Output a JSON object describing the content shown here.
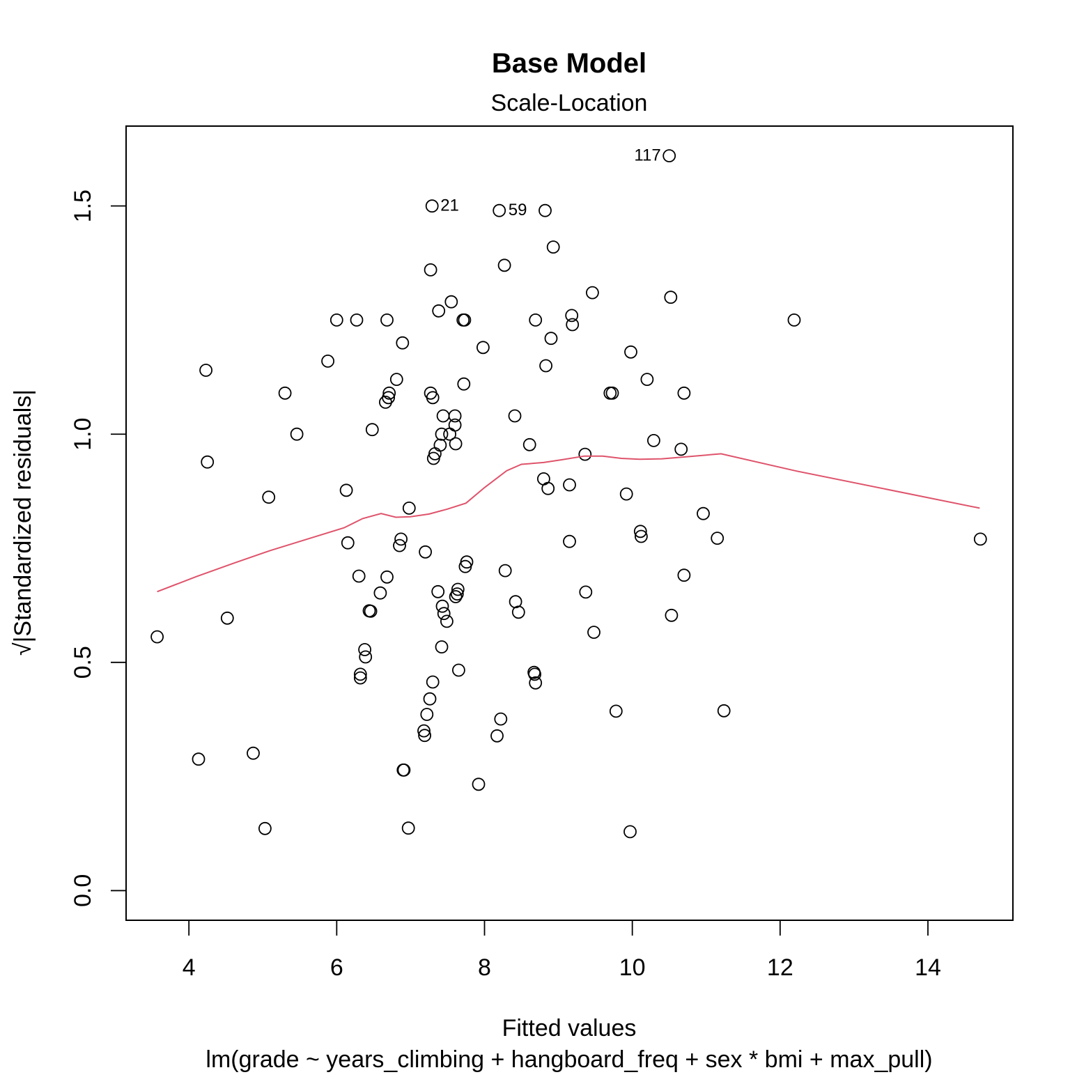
{
  "chart_data": {
    "type": "scatter",
    "title": "Base Model",
    "subtitle": "Scale-Location",
    "xlabel": "Fitted values",
    "xlabel_sub": "lm(grade ~ years_climbing + hangboard_freq + sex * bmi + max_pull)",
    "ylabel": "√|Standardized residuals|",
    "xlim": [
      3.15,
      15.15
    ],
    "ylim": [
      -0.065,
      1.675
    ],
    "x_ticks": [
      4,
      6,
      8,
      10,
      12,
      14
    ],
    "x_tick_labels": [
      "4",
      "6",
      "8",
      "10",
      "12",
      "14"
    ],
    "y_ticks": [
      0.0,
      0.5,
      1.0,
      1.5
    ],
    "y_tick_labels": [
      "0.0",
      "0.5",
      "1.0",
      "1.5"
    ],
    "grid": false,
    "legend": "none",
    "point_color": "#000000",
    "smooth_color": "#df536b",
    "annotations": [
      {
        "text": "117",
        "x": 10.5,
        "y": 1.61,
        "side": "left"
      },
      {
        "text": "21",
        "x": 7.29,
        "y": 1.5,
        "side": "right"
      },
      {
        "text": "59",
        "x": 8.21,
        "y": 1.49,
        "side": "right"
      }
    ],
    "points": [
      [
        3.57,
        0.556
      ],
      [
        4.13,
        0.288
      ],
      [
        4.23,
        1.14
      ],
      [
        4.25,
        0.939
      ],
      [
        4.52,
        0.597
      ],
      [
        4.87,
        0.301
      ],
      [
        5.03,
        0.136
      ],
      [
        5.08,
        0.862
      ],
      [
        5.3,
        1.09
      ],
      [
        5.46,
        1.0
      ],
      [
        5.88,
        1.16
      ],
      [
        6.0,
        1.25
      ],
      [
        6.13,
        0.877
      ],
      [
        6.15,
        0.762
      ],
      [
        6.27,
        1.25
      ],
      [
        6.3,
        0.689
      ],
      [
        6.32,
        0.474
      ],
      [
        6.32,
        0.466
      ],
      [
        6.38,
        0.528
      ],
      [
        6.39,
        0.512
      ],
      [
        6.44,
        0.613
      ],
      [
        6.46,
        0.612
      ],
      [
        6.48,
        1.01
      ],
      [
        6.59,
        0.652
      ],
      [
        6.66,
        1.07
      ],
      [
        6.68,
        0.687
      ],
      [
        6.68,
        1.25
      ],
      [
        6.7,
        1.08
      ],
      [
        6.71,
        1.09
      ],
      [
        6.81,
        1.12
      ],
      [
        6.85,
        0.756
      ],
      [
        6.87,
        0.77
      ],
      [
        6.89,
        1.2
      ],
      [
        6.9,
        0.264
      ],
      [
        6.91,
        0.264
      ],
      [
        6.97,
        0.137
      ],
      [
        6.98,
        0.838
      ],
      [
        7.18,
        0.35
      ],
      [
        7.19,
        0.34
      ],
      [
        7.2,
        0.742
      ],
      [
        7.22,
        0.386
      ],
      [
        7.26,
        0.42
      ],
      [
        7.27,
        1.09
      ],
      [
        7.27,
        1.36
      ],
      [
        7.29,
        1.5
      ],
      [
        7.3,
        1.08
      ],
      [
        7.3,
        0.457
      ],
      [
        7.31,
        0.947
      ],
      [
        7.33,
        0.957
      ],
      [
        7.37,
        0.655
      ],
      [
        7.38,
        1.27
      ],
      [
        7.4,
        0.976
      ],
      [
        7.42,
        1.0
      ],
      [
        7.42,
        0.534
      ],
      [
        7.43,
        0.623
      ],
      [
        7.44,
        1.04
      ],
      [
        7.45,
        0.607
      ],
      [
        7.49,
        0.59
      ],
      [
        7.53,
        1.0
      ],
      [
        7.55,
        1.29
      ],
      [
        7.6,
        1.04
      ],
      [
        7.6,
        1.02
      ],
      [
        7.61,
        0.979
      ],
      [
        7.61,
        0.644
      ],
      [
        7.63,
        0.65
      ],
      [
        7.64,
        0.66
      ],
      [
        7.65,
        0.483
      ],
      [
        7.71,
        1.25
      ],
      [
        7.72,
        1.11
      ],
      [
        7.73,
        1.25
      ],
      [
        7.74,
        0.71
      ],
      [
        7.76,
        0.72
      ],
      [
        7.92,
        0.233
      ],
      [
        7.98,
        1.19
      ],
      [
        8.17,
        0.339
      ],
      [
        8.2,
        1.49
      ],
      [
        8.22,
        0.376
      ],
      [
        8.27,
        1.37
      ],
      [
        8.28,
        0.701
      ],
      [
        8.41,
        1.04
      ],
      [
        8.42,
        0.633
      ],
      [
        8.46,
        0.61
      ],
      [
        8.61,
        0.977
      ],
      [
        8.67,
        0.478
      ],
      [
        8.68,
        0.474
      ],
      [
        8.69,
        0.455
      ],
      [
        8.69,
        1.25
      ],
      [
        8.8,
        0.902
      ],
      [
        8.82,
        1.49
      ],
      [
        8.83,
        1.15
      ],
      [
        8.86,
        0.881
      ],
      [
        8.9,
        1.21
      ],
      [
        8.93,
        1.41
      ],
      [
        9.15,
        0.889
      ],
      [
        9.15,
        0.765
      ],
      [
        9.18,
        1.26
      ],
      [
        9.19,
        1.24
      ],
      [
        9.36,
        0.956
      ],
      [
        9.37,
        0.654
      ],
      [
        9.46,
        1.31
      ],
      [
        9.48,
        0.566
      ],
      [
        9.7,
        1.09
      ],
      [
        9.73,
        1.09
      ],
      [
        9.78,
        0.393
      ],
      [
        9.92,
        0.869
      ],
      [
        9.97,
        0.129
      ],
      [
        9.98,
        1.18
      ],
      [
        10.11,
        0.787
      ],
      [
        10.12,
        0.776
      ],
      [
        10.2,
        1.12
      ],
      [
        10.29,
        0.986
      ],
      [
        10.5,
        1.61
      ],
      [
        10.52,
        1.3
      ],
      [
        10.53,
        0.603
      ],
      [
        10.66,
        0.967
      ],
      [
        10.7,
        0.691
      ],
      [
        10.7,
        1.09
      ],
      [
        10.96,
        0.826
      ],
      [
        11.15,
        0.772
      ],
      [
        11.24,
        0.394
      ],
      [
        12.19,
        1.25
      ],
      [
        14.71,
        0.77
      ]
    ],
    "smooth_line": {
      "x": [
        3.57,
        4.1,
        4.6,
        5.1,
        5.6,
        6.1,
        6.35,
        6.6,
        6.8,
        7.0,
        7.25,
        7.5,
        7.75,
        8.0,
        8.3,
        8.5,
        8.8,
        9.05,
        9.35,
        9.6,
        9.85,
        10.1,
        10.4,
        10.7,
        11.2,
        12.2,
        14.7
      ],
      "y": [
        0.655,
        0.688,
        0.717,
        0.745,
        0.77,
        0.795,
        0.815,
        0.826,
        0.818,
        0.819,
        0.825,
        0.836,
        0.849,
        0.883,
        0.92,
        0.934,
        0.938,
        0.944,
        0.952,
        0.952,
        0.947,
        0.945,
        0.946,
        0.95,
        0.957,
        0.92,
        0.838
      ]
    }
  }
}
